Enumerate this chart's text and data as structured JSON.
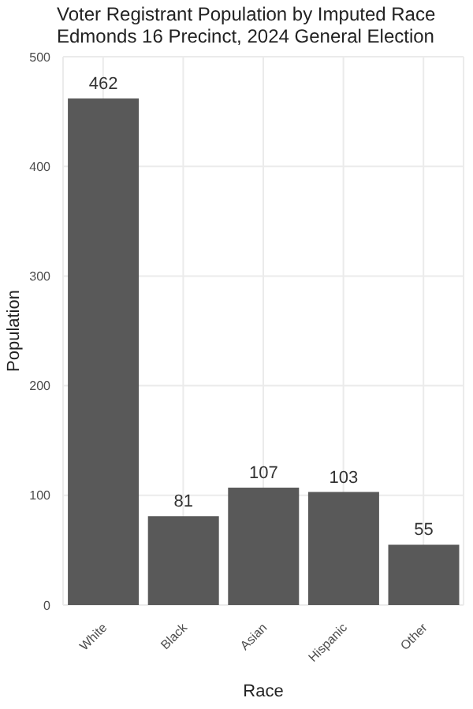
{
  "chart_data": {
    "type": "bar",
    "title": "Voter Registrant Population by Imputed Race",
    "subtitle": "Edmonds 16 Precinct,  2024 General Election",
    "xlabel": "Race",
    "ylabel": "Population",
    "categories": [
      "White",
      "Black",
      "Asian",
      "Hispanic",
      "Other"
    ],
    "values": [
      462,
      81,
      107,
      103,
      55
    ],
    "color": "#595959",
    "ylim": [
      0,
      500
    ],
    "yticks": [
      0,
      100,
      200,
      300,
      400,
      500
    ],
    "grid": true,
    "data_labels": true
  }
}
